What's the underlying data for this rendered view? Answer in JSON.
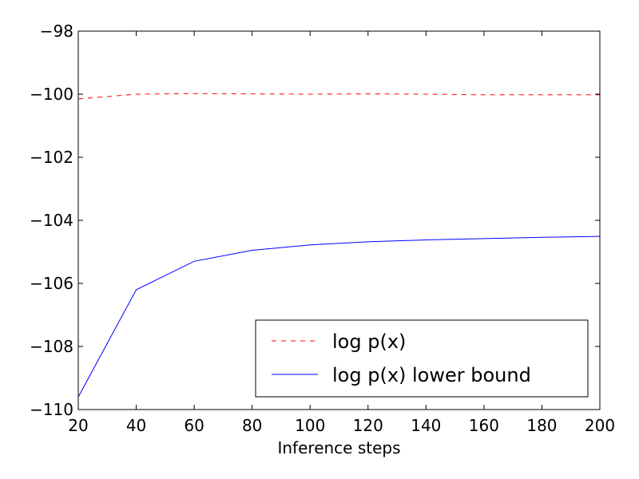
{
  "chart_data": {
    "type": "line",
    "title": "",
    "xlabel": "Inference steps",
    "ylabel": "",
    "xlim": [
      20,
      200
    ],
    "ylim": [
      -110,
      -98
    ],
    "x_ticks": [
      20,
      40,
      60,
      80,
      100,
      120,
      140,
      160,
      180,
      200
    ],
    "y_ticks": [
      -110,
      -108,
      -106,
      -104,
      -102,
      -100,
      -98
    ],
    "y_tick_labels": [
      "−110",
      "−108",
      "−106",
      "−104",
      "−102",
      "−100",
      "−98"
    ],
    "grid": false,
    "legend_position": "lower-right",
    "series": [
      {
        "name": "log p(x)",
        "color": "#ff0000",
        "style": "dashed",
        "x": [
          20,
          40,
          60,
          80,
          100,
          120,
          140,
          160,
          180,
          200
        ],
        "y": [
          -100.15,
          -100.0,
          -99.98,
          -99.99,
          -100.0,
          -99.99,
          -100.0,
          -100.02,
          -100.02,
          -100.02
        ]
      },
      {
        "name": "log p(x) lower bound",
        "color": "#0000ff",
        "style": "solid",
        "x": [
          20,
          40,
          60,
          80,
          100,
          120,
          140,
          160,
          180,
          200
        ],
        "y": [
          -109.6,
          -106.2,
          -105.3,
          -104.95,
          -104.78,
          -104.68,
          -104.62,
          -104.58,
          -104.54,
          -104.51
        ]
      }
    ]
  }
}
